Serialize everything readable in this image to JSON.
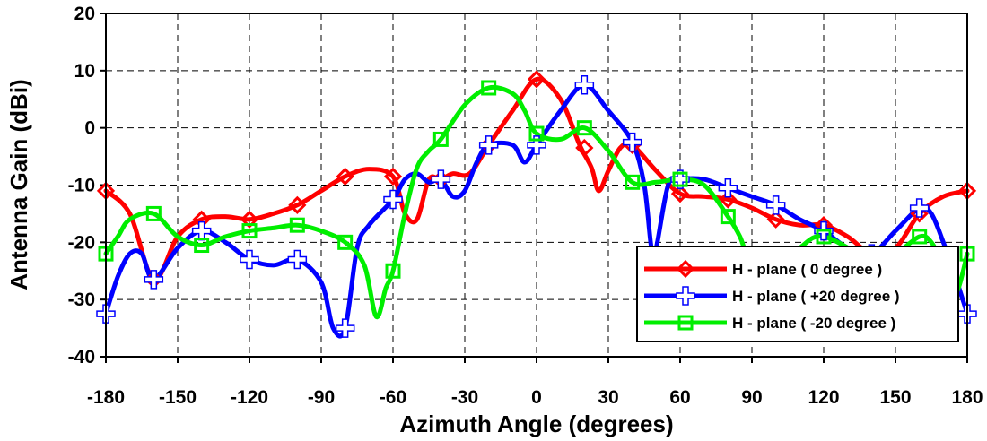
{
  "chart_data": {
    "type": "line",
    "xlabel": "Azimuth Angle (degrees)",
    "ylabel": "Antenna Gain (dBi)",
    "xlim": [
      -180,
      180
    ],
    "ylim": [
      -40,
      20
    ],
    "xticks": [
      -180,
      -150,
      -120,
      -90,
      -60,
      -30,
      0,
      30,
      60,
      90,
      120,
      150,
      180
    ],
    "yticks": [
      -40,
      -30,
      -20,
      -10,
      0,
      10,
      20
    ],
    "grid": true,
    "legend_position": "bottom-right",
    "series": [
      {
        "name": "H - plane ( 0 degree )",
        "color": "#ff0000",
        "marker": "diamond",
        "markers": [
          [
            -180,
            -11
          ],
          [
            -160,
            -26.5
          ],
          [
            -140,
            -16
          ],
          [
            -120,
            -16
          ],
          [
            -100,
            -13.5
          ],
          [
            -80,
            -8.5
          ],
          [
            -60,
            -8.5
          ],
          [
            -40,
            -9
          ],
          [
            -20,
            -3
          ],
          [
            0,
            8.5
          ],
          [
            20,
            -3.5
          ],
          [
            40,
            -3
          ],
          [
            60,
            -11.5
          ],
          [
            80,
            -12.5
          ],
          [
            100,
            -16
          ],
          [
            120,
            -17
          ],
          [
            140,
            -22
          ],
          [
            160,
            -15
          ],
          [
            180,
            -11
          ]
        ],
        "line": [
          [
            -180,
            -11
          ],
          [
            -170,
            -15
          ],
          [
            -160,
            -26.5
          ],
          [
            -150,
            -19
          ],
          [
            -140,
            -16
          ],
          [
            -130,
            -15.5
          ],
          [
            -120,
            -16
          ],
          [
            -110,
            -15
          ],
          [
            -100,
            -13.5
          ],
          [
            -90,
            -11
          ],
          [
            -80,
            -8.5
          ],
          [
            -70,
            -7.2
          ],
          [
            -60,
            -8.5
          ],
          [
            -55,
            -15
          ],
          [
            -50,
            -16
          ],
          [
            -45,
            -9
          ],
          [
            -40,
            -9
          ],
          [
            -35,
            -8
          ],
          [
            -28,
            -8
          ],
          [
            -20,
            -3
          ],
          [
            -10,
            3
          ],
          [
            0,
            8.5
          ],
          [
            10,
            5
          ],
          [
            18,
            -3
          ],
          [
            23,
            -7
          ],
          [
            26,
            -11
          ],
          [
            30,
            -7.5
          ],
          [
            35,
            -3.5
          ],
          [
            40,
            -3
          ],
          [
            50,
            -7.5
          ],
          [
            60,
            -11.5
          ],
          [
            70,
            -12
          ],
          [
            80,
            -12.5
          ],
          [
            90,
            -14
          ],
          [
            100,
            -16
          ],
          [
            110,
            -17
          ],
          [
            120,
            -17
          ],
          [
            130,
            -19
          ],
          [
            140,
            -22
          ],
          [
            150,
            -21
          ],
          [
            160,
            -15
          ],
          [
            170,
            -12
          ],
          [
            180,
            -11
          ]
        ]
      },
      {
        "name": "H - plane ( +20 degree )",
        "color": "#0000ff",
        "marker": "cross",
        "markers": [
          [
            -180,
            -32.5
          ],
          [
            -160,
            -26.5
          ],
          [
            -140,
            -18
          ],
          [
            -120,
            -23
          ],
          [
            -100,
            -23
          ],
          [
            -80,
            -35
          ],
          [
            -60,
            -12.5
          ],
          [
            -40,
            -9
          ],
          [
            -20,
            -3
          ],
          [
            0,
            -3
          ],
          [
            20,
            7.5
          ],
          [
            40,
            -2.5
          ],
          [
            60,
            -9
          ],
          [
            80,
            -10.5
          ],
          [
            100,
            -13.5
          ],
          [
            120,
            -18
          ],
          [
            140,
            -22
          ],
          [
            160,
            -14
          ],
          [
            180,
            -32.5
          ]
        ],
        "line": [
          [
            -180,
            -32.5
          ],
          [
            -175,
            -26
          ],
          [
            -170,
            -22
          ],
          [
            -165,
            -22
          ],
          [
            -160,
            -26.5
          ],
          [
            -150,
            -21
          ],
          [
            -140,
            -18
          ],
          [
            -130,
            -20
          ],
          [
            -120,
            -23
          ],
          [
            -110,
            -24
          ],
          [
            -100,
            -23
          ],
          [
            -90,
            -27
          ],
          [
            -85,
            -35
          ],
          [
            -80,
            -35
          ],
          [
            -75,
            -21
          ],
          [
            -70,
            -17
          ],
          [
            -60,
            -12.5
          ],
          [
            -55,
            -9
          ],
          [
            -50,
            -8
          ],
          [
            -45,
            -9.5
          ],
          [
            -40,
            -9
          ],
          [
            -35,
            -12
          ],
          [
            -30,
            -11
          ],
          [
            -25,
            -6
          ],
          [
            -20,
            -3
          ],
          [
            -10,
            -3
          ],
          [
            -5,
            -6
          ],
          [
            0,
            -3
          ],
          [
            10,
            3
          ],
          [
            20,
            7.5
          ],
          [
            30,
            3
          ],
          [
            40,
            -2.5
          ],
          [
            45,
            -10
          ],
          [
            48,
            -21
          ],
          [
            50,
            -21
          ],
          [
            55,
            -10
          ],
          [
            60,
            -9
          ],
          [
            70,
            -9
          ],
          [
            80,
            -10.5
          ],
          [
            90,
            -12
          ],
          [
            100,
            -13.5
          ],
          [
            110,
            -16
          ],
          [
            120,
            -18
          ],
          [
            130,
            -21
          ],
          [
            140,
            -22
          ],
          [
            150,
            -18
          ],
          [
            160,
            -14
          ],
          [
            165,
            -15
          ],
          [
            170,
            -20
          ],
          [
            175,
            -26
          ],
          [
            180,
            -32.5
          ]
        ]
      },
      {
        "name": "H - plane ( -20 degree )",
        "color": "#00ee00",
        "marker": "square",
        "markers": [
          [
            -180,
            -22
          ],
          [
            -160,
            -15
          ],
          [
            -140,
            -20.5
          ],
          [
            -120,
            -18
          ],
          [
            -100,
            -17
          ],
          [
            -80,
            -20
          ],
          [
            -60,
            -25
          ],
          [
            -40,
            -2
          ],
          [
            -20,
            7
          ],
          [
            0,
            -1
          ],
          [
            20,
            0
          ],
          [
            40,
            -9.5
          ],
          [
            60,
            -9
          ],
          [
            80,
            -15.5
          ],
          [
            120,
            -19
          ],
          [
            160,
            -19
          ],
          [
            180,
            -22
          ]
        ],
        "line": [
          [
            -180,
            -22
          ],
          [
            -175,
            -19
          ],
          [
            -170,
            -16
          ],
          [
            -160,
            -15
          ],
          [
            -150,
            -19
          ],
          [
            -140,
            -20.5
          ],
          [
            -130,
            -19
          ],
          [
            -120,
            -18
          ],
          [
            -110,
            -17.5
          ],
          [
            -100,
            -17
          ],
          [
            -90,
            -18
          ],
          [
            -80,
            -20
          ],
          [
            -72,
            -24
          ],
          [
            -67,
            -33
          ],
          [
            -63,
            -28
          ],
          [
            -60,
            -25
          ],
          [
            -55,
            -15
          ],
          [
            -50,
            -7
          ],
          [
            -45,
            -4
          ],
          [
            -40,
            -2
          ],
          [
            -30,
            4
          ],
          [
            -20,
            7
          ],
          [
            -10,
            6
          ],
          [
            -5,
            3
          ],
          [
            0,
            -1
          ],
          [
            10,
            -2
          ],
          [
            20,
            0
          ],
          [
            30,
            -4
          ],
          [
            40,
            -9.5
          ],
          [
            50,
            -9.5
          ],
          [
            60,
            -9
          ],
          [
            70,
            -10
          ],
          [
            80,
            -15.5
          ],
          [
            85,
            -19
          ],
          [
            90,
            -24
          ],
          [
            100,
            -25
          ],
          [
            110,
            -21
          ],
          [
            120,
            -19
          ],
          [
            140,
            -23
          ],
          [
            150,
            -22
          ],
          [
            160,
            -19
          ],
          [
            165,
            -20
          ],
          [
            170,
            -24
          ],
          [
            175,
            -29
          ],
          [
            180,
            -22
          ]
        ]
      }
    ]
  }
}
